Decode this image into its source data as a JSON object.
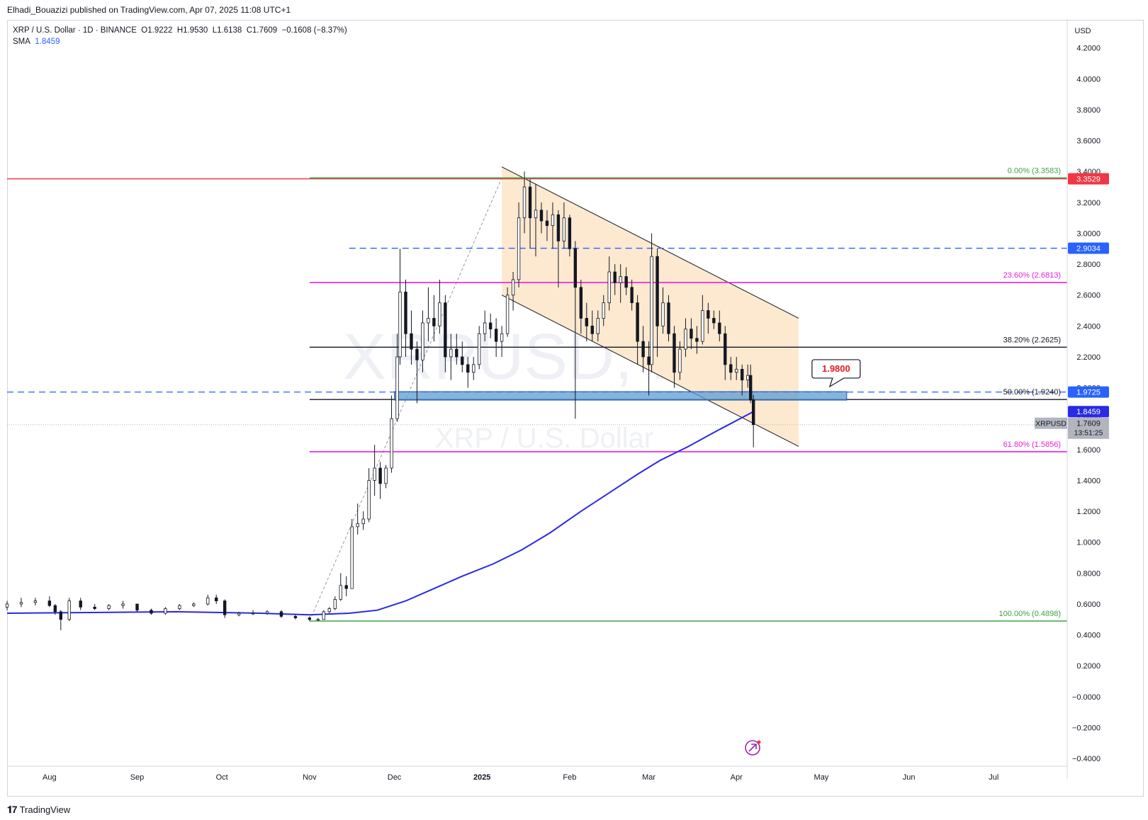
{
  "header": {
    "published": "Elhadi_Bouazizi published on TradingView.com, Apr 07, 2025 11:08 UTC+1"
  },
  "legend": {
    "symbol": "XRP / U.S. Dollar · 1D · BINANCE",
    "open_label": "O",
    "open": "1.9222",
    "high_label": "H",
    "high": "1.9530",
    "low_label": "L",
    "low": "1.6138",
    "close_label": "C",
    "close": "1.7609",
    "change": "−0.1608 (−8.37%)",
    "sma_label": "SMA",
    "sma_value": "1.8459"
  },
  "watermark": {
    "ticker": "XRPUSD, 1D",
    "name": "XRP / U.S. Dollar"
  },
  "footer": {
    "brand": "TradingView",
    "brand_icon": "tradingview-logo-icon"
  },
  "colors": {
    "up": "#ffffff",
    "down": "#131722",
    "sma": "#2929e6",
    "red_line": "#f23645",
    "green_line": "#43a047",
    "magenta_line": "#e91ee0",
    "channel_fill": "#fde9cf",
    "zone_fill": "#5b9bd5",
    "blue_dash": "#2962ff"
  },
  "chart_data": {
    "type": "candlestick",
    "currency": "USD",
    "y_ticks": [
      "4.2000",
      "4.0000",
      "3.8000",
      "3.6000",
      "3.4000",
      "3.2000",
      "3.0000",
      "2.8000",
      "2.6000",
      "2.4000",
      "2.2000",
      "2.0000",
      "1.8000",
      "1.6000",
      "1.4000",
      "1.2000",
      "1.0000",
      "0.8000",
      "0.6000",
      "0.4000",
      "0.2000",
      "−0.0000",
      "−0.2000",
      "−0.4000"
    ],
    "ylim": [
      -0.45,
      4.35
    ],
    "x_ticks": [
      {
        "label": "Aug",
        "date": "2024-08-01"
      },
      {
        "label": "Sep",
        "date": "2024-09-01"
      },
      {
        "label": "Oct",
        "date": "2024-10-01"
      },
      {
        "label": "Nov",
        "date": "2024-11-01"
      },
      {
        "label": "Dec",
        "date": "2024-12-01"
      },
      {
        "label": "2025",
        "date": "2025-01-01"
      },
      {
        "label": "Feb",
        "date": "2025-02-01"
      },
      {
        "label": "Mar",
        "date": "2025-03-01"
      },
      {
        "label": "Apr",
        "date": "2025-04-01"
      },
      {
        "label": "May",
        "date": "2025-05-01"
      },
      {
        "label": "Jun",
        "date": "2025-06-01"
      },
      {
        "label": "Jul",
        "date": "2025-07-01"
      }
    ],
    "xlim": [
      "2024-07-17",
      "2025-07-27"
    ],
    "fib_levels": [
      {
        "label": "0.00% (3.3583)",
        "value": 3.3583,
        "color": "#43a047"
      },
      {
        "label": "23.60% (2.6813)",
        "value": 2.6813,
        "color": "#e91ee0"
      },
      {
        "label": "38.20% (2.2625)",
        "value": 2.2625,
        "color": "#131722"
      },
      {
        "label": "50.00% (1.9240)",
        "value": 1.924,
        "color": "#131722"
      },
      {
        "label": "61.80% (1.5856)",
        "value": 1.5856,
        "color": "#e91ee0"
      },
      {
        "label": "100.00% (0.4898)",
        "value": 0.4898,
        "color": "#43a047"
      }
    ],
    "fib_start_date": "2024-11-01",
    "resistance_red": 3.3529,
    "dashed_levels": [
      {
        "value": 2.9034,
        "start": "2024-11-15"
      },
      {
        "value": 1.9725,
        "start": "2024-07-17"
      }
    ],
    "zone": {
      "from": "2024-12-01",
      "to": "2025-05-10",
      "low": 1.92,
      "high": 1.975
    },
    "channel": {
      "upper": [
        {
          "date": "2025-01-08",
          "value": 3.43
        },
        {
          "date": "2025-04-23",
          "value": 2.45
        }
      ],
      "lower": [
        {
          "date": "2025-01-08",
          "value": 2.6
        },
        {
          "date": "2025-04-23",
          "value": 1.62
        }
      ]
    },
    "annotation": {
      "label": "1.9800",
      "value": 1.98,
      "date": "2025-05-06"
    },
    "price_badges": [
      {
        "label": "3.3529",
        "value": 3.3529,
        "bg": "#f23645",
        "fg": "#ffffff"
      },
      {
        "label": "2.9034",
        "value": 2.9034,
        "bg": "#2962ff",
        "fg": "#ffffff"
      },
      {
        "label": "1.9725",
        "value": 1.9725,
        "bg": "#2962ff",
        "fg": "#ffffff"
      },
      {
        "label": "1.8459",
        "value": 1.8459,
        "bg": "#2929e6",
        "fg": "#ffffff"
      }
    ],
    "last_price": {
      "symbol": "XRPUSD",
      "price": "1.7609",
      "countdown": "13:51:25",
      "value": 1.7609
    },
    "candles": [
      {
        "d": "2024-07-17",
        "o": 0.58,
        "h": 0.62,
        "l": 0.56,
        "c": 0.6
      },
      {
        "d": "2024-07-22",
        "o": 0.6,
        "h": 0.64,
        "l": 0.58,
        "c": 0.61
      },
      {
        "d": "2024-07-27",
        "o": 0.61,
        "h": 0.64,
        "l": 0.59,
        "c": 0.62
      },
      {
        "d": "2024-08-01",
        "o": 0.62,
        "h": 0.65,
        "l": 0.58,
        "c": 0.59
      },
      {
        "d": "2024-08-03",
        "o": 0.59,
        "h": 0.6,
        "l": 0.53,
        "c": 0.55
      },
      {
        "d": "2024-08-05",
        "o": 0.55,
        "h": 0.56,
        "l": 0.43,
        "c": 0.5
      },
      {
        "d": "2024-08-08",
        "o": 0.5,
        "h": 0.64,
        "l": 0.49,
        "c": 0.62
      },
      {
        "d": "2024-08-12",
        "o": 0.62,
        "h": 0.64,
        "l": 0.56,
        "c": 0.58
      },
      {
        "d": "2024-08-17",
        "o": 0.58,
        "h": 0.6,
        "l": 0.56,
        "c": 0.57
      },
      {
        "d": "2024-08-22",
        "o": 0.57,
        "h": 0.6,
        "l": 0.56,
        "c": 0.59
      },
      {
        "d": "2024-08-27",
        "o": 0.59,
        "h": 0.62,
        "l": 0.57,
        "c": 0.6
      },
      {
        "d": "2024-09-01",
        "o": 0.6,
        "h": 0.6,
        "l": 0.55,
        "c": 0.56
      },
      {
        "d": "2024-09-06",
        "o": 0.56,
        "h": 0.57,
        "l": 0.53,
        "c": 0.54
      },
      {
        "d": "2024-09-11",
        "o": 0.54,
        "h": 0.58,
        "l": 0.53,
        "c": 0.57
      },
      {
        "d": "2024-09-16",
        "o": 0.57,
        "h": 0.6,
        "l": 0.56,
        "c": 0.59
      },
      {
        "d": "2024-09-21",
        "o": 0.59,
        "h": 0.61,
        "l": 0.58,
        "c": 0.6
      },
      {
        "d": "2024-09-26",
        "o": 0.6,
        "h": 0.66,
        "l": 0.59,
        "c": 0.64
      },
      {
        "d": "2024-09-29",
        "o": 0.64,
        "h": 0.66,
        "l": 0.6,
        "c": 0.62
      },
      {
        "d": "2024-10-02",
        "o": 0.62,
        "h": 0.63,
        "l": 0.51,
        "c": 0.53
      },
      {
        "d": "2024-10-07",
        "o": 0.53,
        "h": 0.55,
        "l": 0.52,
        "c": 0.54
      },
      {
        "d": "2024-10-12",
        "o": 0.54,
        "h": 0.56,
        "l": 0.53,
        "c": 0.54
      },
      {
        "d": "2024-10-17",
        "o": 0.54,
        "h": 0.56,
        "l": 0.53,
        "c": 0.55
      },
      {
        "d": "2024-10-22",
        "o": 0.55,
        "h": 0.56,
        "l": 0.51,
        "c": 0.52
      },
      {
        "d": "2024-10-27",
        "o": 0.52,
        "h": 0.53,
        "l": 0.5,
        "c": 0.51
      },
      {
        "d": "2024-11-01",
        "o": 0.51,
        "h": 0.52,
        "l": 0.49,
        "c": 0.5
      },
      {
        "d": "2024-11-04",
        "o": 0.5,
        "h": 0.51,
        "l": 0.49,
        "c": 0.5
      },
      {
        "d": "2024-11-06",
        "o": 0.5,
        "h": 0.56,
        "l": 0.5,
        "c": 0.55
      },
      {
        "d": "2024-11-08",
        "o": 0.55,
        "h": 0.58,
        "l": 0.54,
        "c": 0.57
      },
      {
        "d": "2024-11-10",
        "o": 0.57,
        "h": 0.65,
        "l": 0.56,
        "c": 0.63
      },
      {
        "d": "2024-11-12",
        "o": 0.63,
        "h": 0.8,
        "l": 0.62,
        "c": 0.72
      },
      {
        "d": "2024-11-14",
        "o": 0.72,
        "h": 0.78,
        "l": 0.65,
        "c": 0.7
      },
      {
        "d": "2024-11-16",
        "o": 0.7,
        "h": 1.15,
        "l": 0.7,
        "c": 1.1
      },
      {
        "d": "2024-11-18",
        "o": 1.1,
        "h": 1.25,
        "l": 1.05,
        "c": 1.12
      },
      {
        "d": "2024-11-20",
        "o": 1.12,
        "h": 1.2,
        "l": 1.08,
        "c": 1.15
      },
      {
        "d": "2024-11-22",
        "o": 1.15,
        "h": 1.48,
        "l": 1.13,
        "c": 1.4
      },
      {
        "d": "2024-11-24",
        "o": 1.4,
        "h": 1.63,
        "l": 1.3,
        "c": 1.48
      },
      {
        "d": "2024-11-26",
        "o": 1.48,
        "h": 1.52,
        "l": 1.28,
        "c": 1.38
      },
      {
        "d": "2024-11-28",
        "o": 1.38,
        "h": 1.5,
        "l": 1.35,
        "c": 1.48
      },
      {
        "d": "2024-11-30",
        "o": 1.48,
        "h": 1.95,
        "l": 1.45,
        "c": 1.8
      },
      {
        "d": "2024-12-02",
        "o": 1.8,
        "h": 2.35,
        "l": 1.78,
        "c": 2.2
      },
      {
        "d": "2024-12-03",
        "o": 2.2,
        "h": 2.9,
        "l": 2.15,
        "c": 2.62
      },
      {
        "d": "2024-12-05",
        "o": 2.62,
        "h": 2.7,
        "l": 2.2,
        "c": 2.35
      },
      {
        "d": "2024-12-07",
        "o": 2.35,
        "h": 2.5,
        "l": 2.15,
        "c": 2.25
      },
      {
        "d": "2024-12-09",
        "o": 2.25,
        "h": 2.3,
        "l": 1.9,
        "c": 2.18
      },
      {
        "d": "2024-12-11",
        "o": 2.18,
        "h": 2.5,
        "l": 2.1,
        "c": 2.42
      },
      {
        "d": "2024-12-13",
        "o": 2.42,
        "h": 2.65,
        "l": 2.3,
        "c": 2.45
      },
      {
        "d": "2024-12-15",
        "o": 2.45,
        "h": 2.6,
        "l": 2.3,
        "c": 2.4
      },
      {
        "d": "2024-12-17",
        "o": 2.4,
        "h": 2.7,
        "l": 2.35,
        "c": 2.55
      },
      {
        "d": "2024-12-19",
        "o": 2.55,
        "h": 2.6,
        "l": 2.1,
        "c": 2.2
      },
      {
        "d": "2024-12-21",
        "o": 2.2,
        "h": 2.35,
        "l": 2.05,
        "c": 2.25
      },
      {
        "d": "2024-12-23",
        "o": 2.25,
        "h": 2.35,
        "l": 2.15,
        "c": 2.2
      },
      {
        "d": "2024-12-25",
        "o": 2.2,
        "h": 2.3,
        "l": 2.1,
        "c": 2.15
      },
      {
        "d": "2024-12-27",
        "o": 2.15,
        "h": 2.2,
        "l": 2.0,
        "c": 2.1
      },
      {
        "d": "2024-12-29",
        "o": 2.1,
        "h": 2.2,
        "l": 2.05,
        "c": 2.15
      },
      {
        "d": "2024-12-31",
        "o": 2.15,
        "h": 2.4,
        "l": 2.12,
        "c": 2.35
      },
      {
        "d": "2025-01-02",
        "o": 2.35,
        "h": 2.5,
        "l": 2.3,
        "c": 2.42
      },
      {
        "d": "2025-01-04",
        "o": 2.42,
        "h": 2.48,
        "l": 2.32,
        "c": 2.38
      },
      {
        "d": "2025-01-06",
        "o": 2.38,
        "h": 2.45,
        "l": 2.2,
        "c": 2.3
      },
      {
        "d": "2025-01-08",
        "o": 2.3,
        "h": 2.4,
        "l": 2.2,
        "c": 2.35
      },
      {
        "d": "2025-01-10",
        "o": 2.35,
        "h": 2.65,
        "l": 2.33,
        "c": 2.6
      },
      {
        "d": "2025-01-12",
        "o": 2.6,
        "h": 2.75,
        "l": 2.5,
        "c": 2.7
      },
      {
        "d": "2025-01-14",
        "o": 2.7,
        "h": 3.2,
        "l": 2.65,
        "c": 3.1
      },
      {
        "d": "2025-01-16",
        "o": 3.1,
        "h": 3.4,
        "l": 3.0,
        "c": 3.3
      },
      {
        "d": "2025-01-18",
        "o": 3.3,
        "h": 3.35,
        "l": 2.9,
        "c": 3.1
      },
      {
        "d": "2025-01-20",
        "o": 3.1,
        "h": 3.32,
        "l": 2.85,
        "c": 3.15
      },
      {
        "d": "2025-01-22",
        "o": 3.15,
        "h": 3.2,
        "l": 3.0,
        "c": 3.08
      },
      {
        "d": "2025-01-24",
        "o": 3.08,
        "h": 3.15,
        "l": 2.95,
        "c": 3.05
      },
      {
        "d": "2025-01-26",
        "o": 3.05,
        "h": 3.2,
        "l": 2.9,
        "c": 3.12
      },
      {
        "d": "2025-01-28",
        "o": 3.12,
        "h": 3.15,
        "l": 2.65,
        "c": 2.95
      },
      {
        "d": "2025-01-30",
        "o": 2.95,
        "h": 3.2,
        "l": 2.9,
        "c": 3.1
      },
      {
        "d": "2025-02-01",
        "o": 3.1,
        "h": 3.12,
        "l": 2.85,
        "c": 2.9
      },
      {
        "d": "2025-02-03",
        "o": 2.9,
        "h": 2.95,
        "l": 1.8,
        "c": 2.65
      },
      {
        "d": "2025-02-05",
        "o": 2.65,
        "h": 2.7,
        "l": 2.35,
        "c": 2.45
      },
      {
        "d": "2025-02-07",
        "o": 2.45,
        "h": 2.55,
        "l": 2.3,
        "c": 2.4
      },
      {
        "d": "2025-02-09",
        "o": 2.4,
        "h": 2.5,
        "l": 2.3,
        "c": 2.35
      },
      {
        "d": "2025-02-11",
        "o": 2.35,
        "h": 2.5,
        "l": 2.3,
        "c": 2.45
      },
      {
        "d": "2025-02-13",
        "o": 2.45,
        "h": 2.6,
        "l": 2.4,
        "c": 2.55
      },
      {
        "d": "2025-02-15",
        "o": 2.55,
        "h": 2.85,
        "l": 2.5,
        "c": 2.75
      },
      {
        "d": "2025-02-17",
        "o": 2.75,
        "h": 2.8,
        "l": 2.6,
        "c": 2.68
      },
      {
        "d": "2025-02-19",
        "o": 2.68,
        "h": 2.8,
        "l": 2.55,
        "c": 2.72
      },
      {
        "d": "2025-02-21",
        "o": 2.72,
        "h": 2.78,
        "l": 2.6,
        "c": 2.65
      },
      {
        "d": "2025-02-23",
        "o": 2.65,
        "h": 2.7,
        "l": 2.5,
        "c": 2.55
      },
      {
        "d": "2025-02-25",
        "o": 2.55,
        "h": 2.6,
        "l": 2.15,
        "c": 2.3
      },
      {
        "d": "2025-02-27",
        "o": 2.3,
        "h": 2.4,
        "l": 2.1,
        "c": 2.2
      },
      {
        "d": "2025-03-01",
        "o": 2.2,
        "h": 2.3,
        "l": 1.95,
        "c": 2.15
      },
      {
        "d": "2025-03-02",
        "o": 2.15,
        "h": 3.0,
        "l": 2.1,
        "c": 2.85
      },
      {
        "d": "2025-03-04",
        "o": 2.85,
        "h": 2.9,
        "l": 2.2,
        "c": 2.4
      },
      {
        "d": "2025-03-06",
        "o": 2.4,
        "h": 2.65,
        "l": 2.35,
        "c": 2.55
      },
      {
        "d": "2025-03-08",
        "o": 2.55,
        "h": 2.6,
        "l": 2.3,
        "c": 2.35
      },
      {
        "d": "2025-03-10",
        "o": 2.35,
        "h": 2.4,
        "l": 2.0,
        "c": 2.1
      },
      {
        "d": "2025-03-12",
        "o": 2.1,
        "h": 2.3,
        "l": 2.05,
        "c": 2.25
      },
      {
        "d": "2025-03-14",
        "o": 2.25,
        "h": 2.45,
        "l": 2.2,
        "c": 2.38
      },
      {
        "d": "2025-03-16",
        "o": 2.38,
        "h": 2.45,
        "l": 2.25,
        "c": 2.32
      },
      {
        "d": "2025-03-18",
        "o": 2.32,
        "h": 2.4,
        "l": 2.22,
        "c": 2.3
      },
      {
        "d": "2025-03-20",
        "o": 2.3,
        "h": 2.6,
        "l": 2.28,
        "c": 2.5
      },
      {
        "d": "2025-03-22",
        "o": 2.5,
        "h": 2.55,
        "l": 2.35,
        "c": 2.45
      },
      {
        "d": "2025-03-24",
        "o": 2.45,
        "h": 2.5,
        "l": 2.38,
        "c": 2.42
      },
      {
        "d": "2025-03-26",
        "o": 2.42,
        "h": 2.5,
        "l": 2.3,
        "c": 2.35
      },
      {
        "d": "2025-03-28",
        "o": 2.35,
        "h": 2.4,
        "l": 2.05,
        "c": 2.15
      },
      {
        "d": "2025-03-30",
        "o": 2.15,
        "h": 2.2,
        "l": 2.05,
        "c": 2.1
      },
      {
        "d": "2025-04-01",
        "o": 2.1,
        "h": 2.2,
        "l": 2.05,
        "c": 2.12
      },
      {
        "d": "2025-04-03",
        "o": 2.12,
        "h": 2.15,
        "l": 1.95,
        "c": 2.05
      },
      {
        "d": "2025-04-05",
        "o": 2.05,
        "h": 2.15,
        "l": 2.0,
        "c": 2.08
      },
      {
        "d": "2025-04-06",
        "o": 2.08,
        "h": 2.15,
        "l": 1.9,
        "c": 1.92
      },
      {
        "d": "2025-04-07",
        "o": 1.9222,
        "h": 1.953,
        "l": 1.6138,
        "c": 1.7609
      }
    ],
    "sma": [
      {
        "d": "2024-07-17",
        "v": 0.54
      },
      {
        "d": "2024-08-15",
        "v": 0.545
      },
      {
        "d": "2024-09-15",
        "v": 0.55
      },
      {
        "d": "2024-10-15",
        "v": 0.54
      },
      {
        "d": "2024-11-01",
        "v": 0.53
      },
      {
        "d": "2024-11-15",
        "v": 0.54
      },
      {
        "d": "2024-11-25",
        "v": 0.56
      },
      {
        "d": "2024-12-05",
        "v": 0.62
      },
      {
        "d": "2024-12-15",
        "v": 0.7
      },
      {
        "d": "2024-12-25",
        "v": 0.78
      },
      {
        "d": "2025-01-05",
        "v": 0.86
      },
      {
        "d": "2025-01-15",
        "v": 0.95
      },
      {
        "d": "2025-01-25",
        "v": 1.06
      },
      {
        "d": "2025-02-05",
        "v": 1.2
      },
      {
        "d": "2025-02-15",
        "v": 1.32
      },
      {
        "d": "2025-02-25",
        "v": 1.44
      },
      {
        "d": "2025-03-05",
        "v": 1.53
      },
      {
        "d": "2025-03-15",
        "v": 1.62
      },
      {
        "d": "2025-03-25",
        "v": 1.72
      },
      {
        "d": "2025-04-07",
        "v": 1.8459
      }
    ]
  }
}
